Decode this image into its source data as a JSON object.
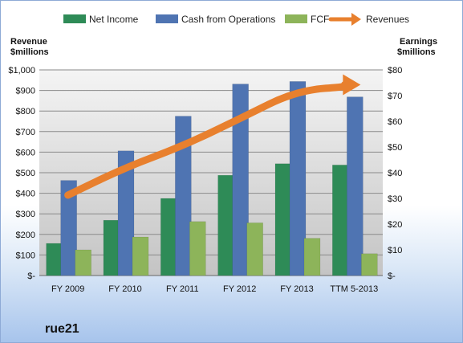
{
  "chart_data": {
    "type": "bar",
    "legend_position": "top",
    "grid": true,
    "categories": [
      "FY 2009",
      "FY 2010",
      "FY 2011",
      "FY 2012",
      "FY 2013",
      "TTM 5-2013"
    ],
    "y_left": {
      "label_line1": "Revenue",
      "label_line2": "$millions",
      "range": [
        0,
        1000
      ],
      "ticks": [
        "$-",
        "$100",
        "$200",
        "$300",
        "$400",
        "$500",
        "$600",
        "$700",
        "$800",
        "$900",
        "$1,000"
      ]
    },
    "y_right": {
      "label_line1": "Earnings",
      "label_line2": "$millions",
      "range": [
        0,
        80
      ],
      "ticks": [
        "$-",
        "$10",
        "$20",
        "$30",
        "$40",
        "$50",
        "$60",
        "$70",
        "$80"
      ]
    },
    "series": [
      {
        "name": "Net Income",
        "axis": "right",
        "color": "#2e8b57",
        "values": [
          12.5,
          21.5,
          30,
          39,
          43.5,
          43
        ]
      },
      {
        "name": "Cash from Operations",
        "axis": "right",
        "color": "#4f74b2",
        "values": [
          37,
          48.5,
          62,
          74.5,
          75.5,
          69.5
        ]
      },
      {
        "name": "FCF",
        "axis": "right",
        "color": "#8db45a",
        "values": [
          10,
          15,
          21,
          20.5,
          14.5,
          8.5
        ]
      },
      {
        "name": "Revenues",
        "axis": "left",
        "type": "line",
        "color": "#e8802e",
        "values": [
          391,
          525,
          629,
          762,
          901,
          920
        ]
      }
    ]
  },
  "brand": "rue21"
}
